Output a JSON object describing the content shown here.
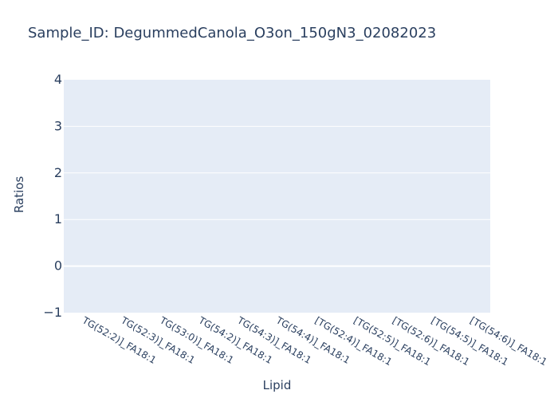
{
  "chart_data": {
    "type": "bar",
    "title": "Sample_ID: DegummedCanola_O3on_150gN3_02082023",
    "xlabel": "Lipid",
    "ylabel": "Ratios",
    "categories": [
      "TG(52:2)]_FA18:1",
      "TG(52:3)]_FA18:1",
      "TG(53:0)]_FA18:1",
      "TG(54:2)]_FA18:1",
      "TG(54:3)]_FA18:1",
      "TG(54:4)]_FA18:1",
      "[TG(52:4)]_FA18:1",
      "[TG(52:5)]_FA18:1",
      "[TG(52:6)]_FA18:1",
      "[TG(54:5)]_FA18:1",
      "[TG(54:6)]_FA18:1"
    ],
    "series": [
      {
        "values": [
          null,
          null,
          null,
          null,
          null,
          null,
          null,
          null,
          null,
          null,
          null
        ]
      }
    ],
    "ylim": [
      -1,
      4
    ],
    "yticks": [
      "4",
      "3",
      "2",
      "1",
      "0",
      "−1"
    ],
    "grid": true,
    "legend": "none",
    "colors": {
      "plot_bg": "#e5ecf6",
      "grid": "#ffffff",
      "text": "#2a3f5f",
      "bar": "#636efa"
    }
  }
}
